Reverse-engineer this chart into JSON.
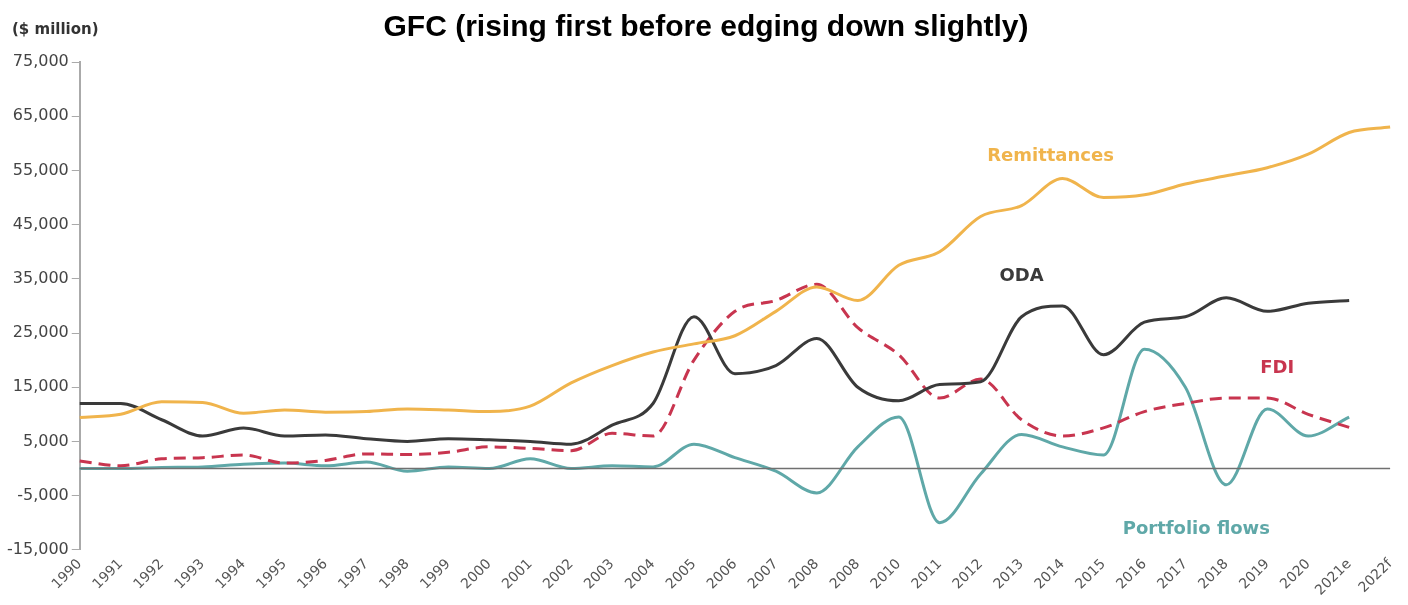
{
  "chart_data": {
    "type": "line",
    "title": "GFC (rising first before edging down slightly)",
    "ylabel": "($ million)",
    "categories": [
      "1990",
      "1991",
      "1992",
      "1993",
      "1994",
      "1995",
      "1996",
      "1997",
      "1998",
      "1999",
      "2000",
      "2001",
      "2002",
      "2003",
      "2004",
      "2005",
      "2006",
      "2007",
      "2008",
      "2008",
      "2010",
      "2011",
      "2012",
      "2013",
      "2014",
      "2015",
      "2016",
      "2017",
      "2018",
      "2019",
      "2020",
      "2021e",
      "2022f"
    ],
    "series": [
      {
        "name": "Remittances",
        "color": "#f0b44c",
        "values": [
          9400,
          10000,
          12300,
          12200,
          10200,
          10800,
          10400,
          10500,
          11000,
          10800,
          10500,
          11500,
          15800,
          19000,
          21500,
          23000,
          24500,
          29000,
          33500,
          31000,
          37500,
          40000,
          46500,
          48500,
          53500,
          50000,
          50500,
          52500,
          54000,
          55500,
          58000,
          62000,
          63000
        ]
      },
      {
        "name": "ODA",
        "color": "#3a3a3a",
        "values": [
          12000,
          12000,
          9000,
          6000,
          7500,
          6000,
          6200,
          5500,
          5000,
          5500,
          5300,
          5000,
          4500,
          8000,
          12000,
          28000,
          17500,
          19000,
          24000,
          15000,
          12500,
          15500,
          16000,
          28000,
          30000,
          21000,
          27000,
          28000,
          31500,
          29000,
          30500,
          31000,
          null
        ]
      },
      {
        "name": "FDI",
        "color": "#c8354f",
        "line_style": "dashed",
        "values": [
          1400,
          500,
          1800,
          2000,
          2500,
          1000,
          1500,
          2700,
          2600,
          3000,
          4000,
          3700,
          3300,
          6500,
          6000,
          20000,
          29000,
          31000,
          34000,
          26000,
          21000,
          13000,
          16500,
          9000,
          6000,
          7500,
          10500,
          12000,
          13000,
          13000,
          10000,
          7600,
          null
        ]
      },
      {
        "name": "Portfolio flows",
        "color": "#5fa8a8",
        "values": [
          0,
          0,
          200,
          300,
          800,
          1000,
          500,
          1200,
          -500,
          300,
          0,
          1800,
          0,
          500,
          300,
          4500,
          2000,
          -500,
          -4500,
          4000,
          9500,
          -10000,
          -1000,
          6300,
          4000,
          2500,
          22000,
          15000,
          -3000,
          11000,
          6000,
          9500,
          null
        ]
      }
    ],
    "ylim": [
      -15000,
      75000
    ],
    "yticks": [
      {
        "value": -15000,
        "label": "-15,000"
      },
      {
        "value": -5000,
        "label": "-5,000"
      },
      {
        "value": 5000,
        "label": "5,000"
      },
      {
        "value": 15000,
        "label": "15,000"
      },
      {
        "value": 25000,
        "label": "25,000"
      },
      {
        "value": 35000,
        "label": "35,000"
      },
      {
        "value": 45000,
        "label": "45,000"
      },
      {
        "value": 55000,
        "label": "55,000"
      },
      {
        "value": 65000,
        "label": "65,000"
      },
      {
        "value": 75000,
        "label": "75,000"
      }
    ],
    "ref_lines": [
      {
        "axis": "y",
        "value": 0,
        "color": "#707070"
      }
    ],
    "grid": false,
    "legend": false
  }
}
